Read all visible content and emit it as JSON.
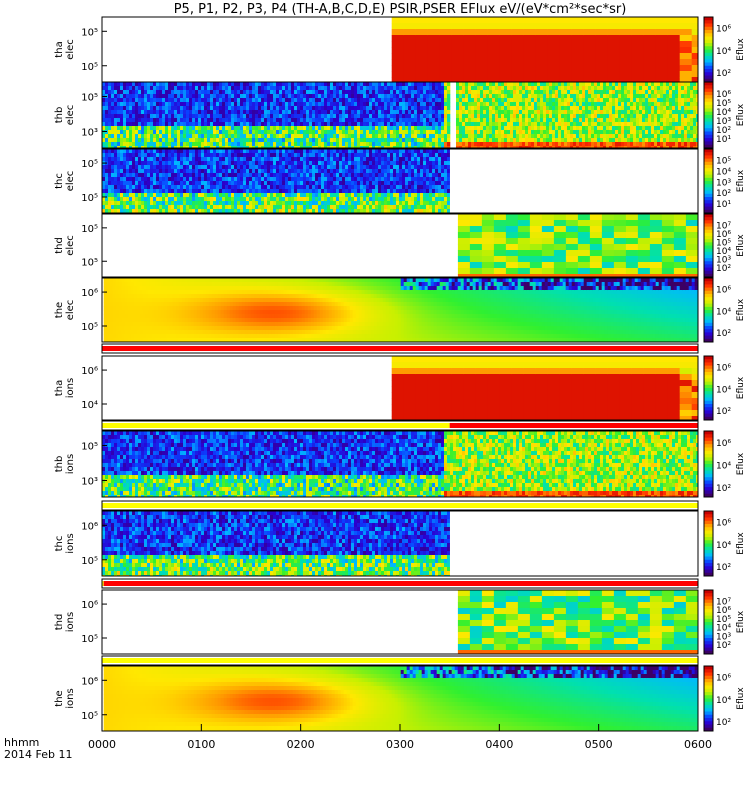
{
  "title": "P5, P1, P2, P3, P4 (TH-A,B,C,D,E) PSIR,PSER EFlux eV/(eV*cm²*sec*sr)",
  "colors": {
    "colormap": [
      "#3c0064",
      "#2b00d0",
      "#0a40ff",
      "#00b8ff",
      "#00e0b0",
      "#30f030",
      "#c8f000",
      "#ffe800",
      "#ff9a00",
      "#ff3000",
      "#c80000"
    ],
    "bar_red": "#ff0000",
    "bar_yellow": "#ffff00"
  },
  "chart_data": {
    "type": "heatmap",
    "x_axis": {
      "tick_labels": [
        "0000",
        "0100",
        "0200",
        "0300",
        "0400",
        "0500",
        "0600"
      ],
      "label_line1": "hhmm",
      "label_line2": "2014 Feb 11"
    },
    "panels": [
      {
        "name": "tha elec",
        "label1": "tha",
        "label2": "elec",
        "y_ticks": [
          "10⁵",
          "10⁵"
        ],
        "colorbar_ticks": [
          "10⁶",
          "10⁴",
          "10²"
        ],
        "colorbar_label": "Eflux",
        "data_start": "0255",
        "profile": "sat"
      },
      {
        "name": "thb elec",
        "label1": "thb",
        "label2": "elec",
        "y_ticks": [
          "10⁵",
          "10³"
        ],
        "colorbar_ticks": [
          "10⁶",
          "10⁵",
          "10⁴",
          "10³",
          "10²",
          "10¹"
        ],
        "colorbar_label": "Eflux",
        "data_start": "0000",
        "profile": "noise_then_blocks",
        "gap": [
          "0329",
          "0333"
        ]
      },
      {
        "name": "thc elec",
        "label1": "thc",
        "label2": "elec",
        "y_ticks": [
          "10⁵",
          "10⁵"
        ],
        "colorbar_ticks": [
          "10⁵",
          "10⁴",
          "10³",
          "10²",
          "10¹"
        ],
        "colorbar_label": "Eflux",
        "data_start": "0000",
        "data_end": "0330",
        "profile": "noise"
      },
      {
        "name": "thd elec",
        "label1": "thd",
        "label2": "elec",
        "y_ticks": [
          "10⁵",
          "10⁵"
        ],
        "colorbar_ticks": [
          "10⁷",
          "10⁶",
          "10⁵",
          "10⁴",
          "10³",
          "10²"
        ],
        "colorbar_label": "Eflux",
        "data_start": "0335",
        "profile": "blocks"
      },
      {
        "name": "the elec",
        "label1": "the",
        "label2": "elec",
        "y_ticks": [
          "10⁶",
          "10⁵"
        ],
        "colorbar_ticks": [
          "10⁶",
          "10⁴",
          "10²"
        ],
        "colorbar_label": "Eflux",
        "data_start": "0001",
        "profile": "smooth"
      },
      {
        "name": "tha ions",
        "label1": "tha",
        "label2": "ions",
        "y_ticks": [
          "10⁶",
          "10⁴"
        ],
        "colorbar_ticks": [
          "10⁶",
          "10⁴",
          "10²"
        ],
        "colorbar_label": "Eflux",
        "data_start": "0255",
        "profile": "sat"
      },
      {
        "name": "thb ions",
        "label1": "thb",
        "label2": "ions",
        "y_ticks": [
          "10⁵",
          "10³"
        ],
        "colorbar_ticks": [
          "10⁶",
          "10⁴",
          "10²"
        ],
        "colorbar_label": "Eflux",
        "data_start": "0000",
        "profile": "noise_then_blocks"
      },
      {
        "name": "thc ions",
        "label1": "thc",
        "label2": "ions",
        "y_ticks": [
          "10⁶",
          "10⁵"
        ],
        "colorbar_ticks": [
          "10⁶",
          "10⁴",
          "10²"
        ],
        "colorbar_label": "Eflux",
        "data_start": "0000",
        "data_end": "0330",
        "profile": "noise"
      },
      {
        "name": "thd ions",
        "label1": "thd",
        "label2": "ions",
        "y_ticks": [
          "10⁶",
          "10⁵"
        ],
        "colorbar_ticks": [
          "10⁷",
          "10⁶",
          "10⁵",
          "10⁴",
          "10³",
          "10²"
        ],
        "colorbar_label": "Eflux",
        "data_start": "0335",
        "profile": "blocks"
      },
      {
        "name": "the ions",
        "label1": "the",
        "label2": "ions",
        "y_ticks": [
          "10⁶",
          "10⁵"
        ],
        "colorbar_ticks": [
          "10⁶",
          "10⁴",
          "10²"
        ],
        "colorbar_label": "Eflux",
        "data_start": "0001",
        "profile": "smooth"
      }
    ],
    "mode_bars": [
      {
        "after_panel": "the elec",
        "segments": [
          {
            "from": "0000",
            "to": "0600",
            "color": "red"
          }
        ]
      },
      {
        "after_panel": "tha ions",
        "segments": [
          {
            "from": "0000",
            "to": "0330",
            "color": "yellow"
          },
          {
            "from": "0330",
            "to": "0600",
            "color": "red"
          }
        ]
      },
      {
        "after_panel": "thb ions",
        "segments": [
          {
            "from": "0000",
            "to": "0600",
            "color": "yellow"
          }
        ]
      },
      {
        "after_panel": "thc ions",
        "segments": [
          {
            "from": "0000",
            "to": "0001",
            "color": "yellow"
          },
          {
            "from": "0001",
            "to": "0600",
            "color": "red"
          }
        ]
      },
      {
        "after_panel": "thd ions",
        "segments": [
          {
            "from": "0000",
            "to": "0600",
            "color": "yellow"
          }
        ]
      }
    ]
  }
}
